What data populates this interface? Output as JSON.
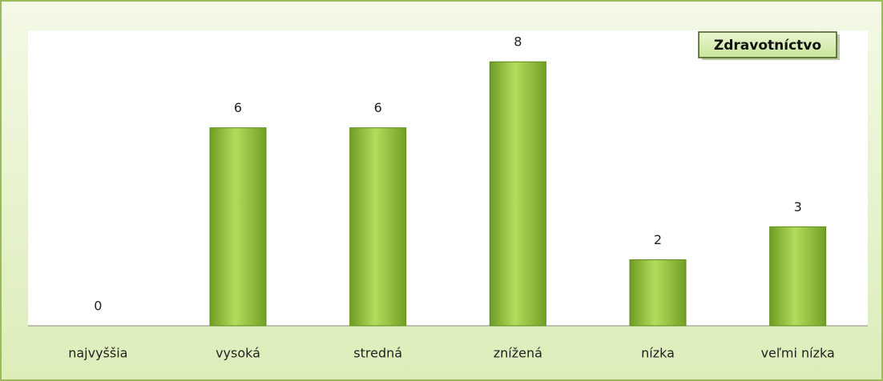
{
  "chart_data": {
    "type": "bar",
    "title": "Zdravotníctvo",
    "categories": [
      "najvyššia",
      "vysoká",
      "stredná",
      "znížená",
      "nízka",
      "veľmi nízka"
    ],
    "values": [
      0,
      6,
      6,
      8,
      2,
      3
    ],
    "color": "#8fc23a",
    "ylim": [
      0,
      9
    ],
    "grid": false
  }
}
